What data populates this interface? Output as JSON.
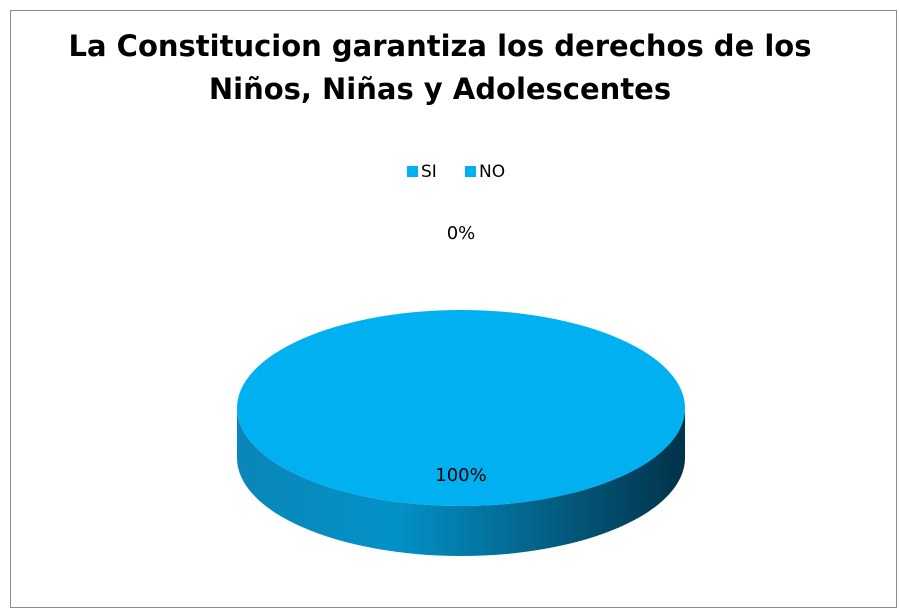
{
  "chart_data": {
    "type": "pie",
    "title": [
      "La Constitucion garantiza los derechos de los",
      "Niños, Niñas y Adolescentes"
    ],
    "categories": [
      "SI",
      "NO"
    ],
    "values": [
      100,
      0
    ],
    "value_labels": [
      "100%",
      "0%"
    ],
    "colors": [
      "#00b0f0",
      "#00b0f0"
    ],
    "legend": "top"
  }
}
